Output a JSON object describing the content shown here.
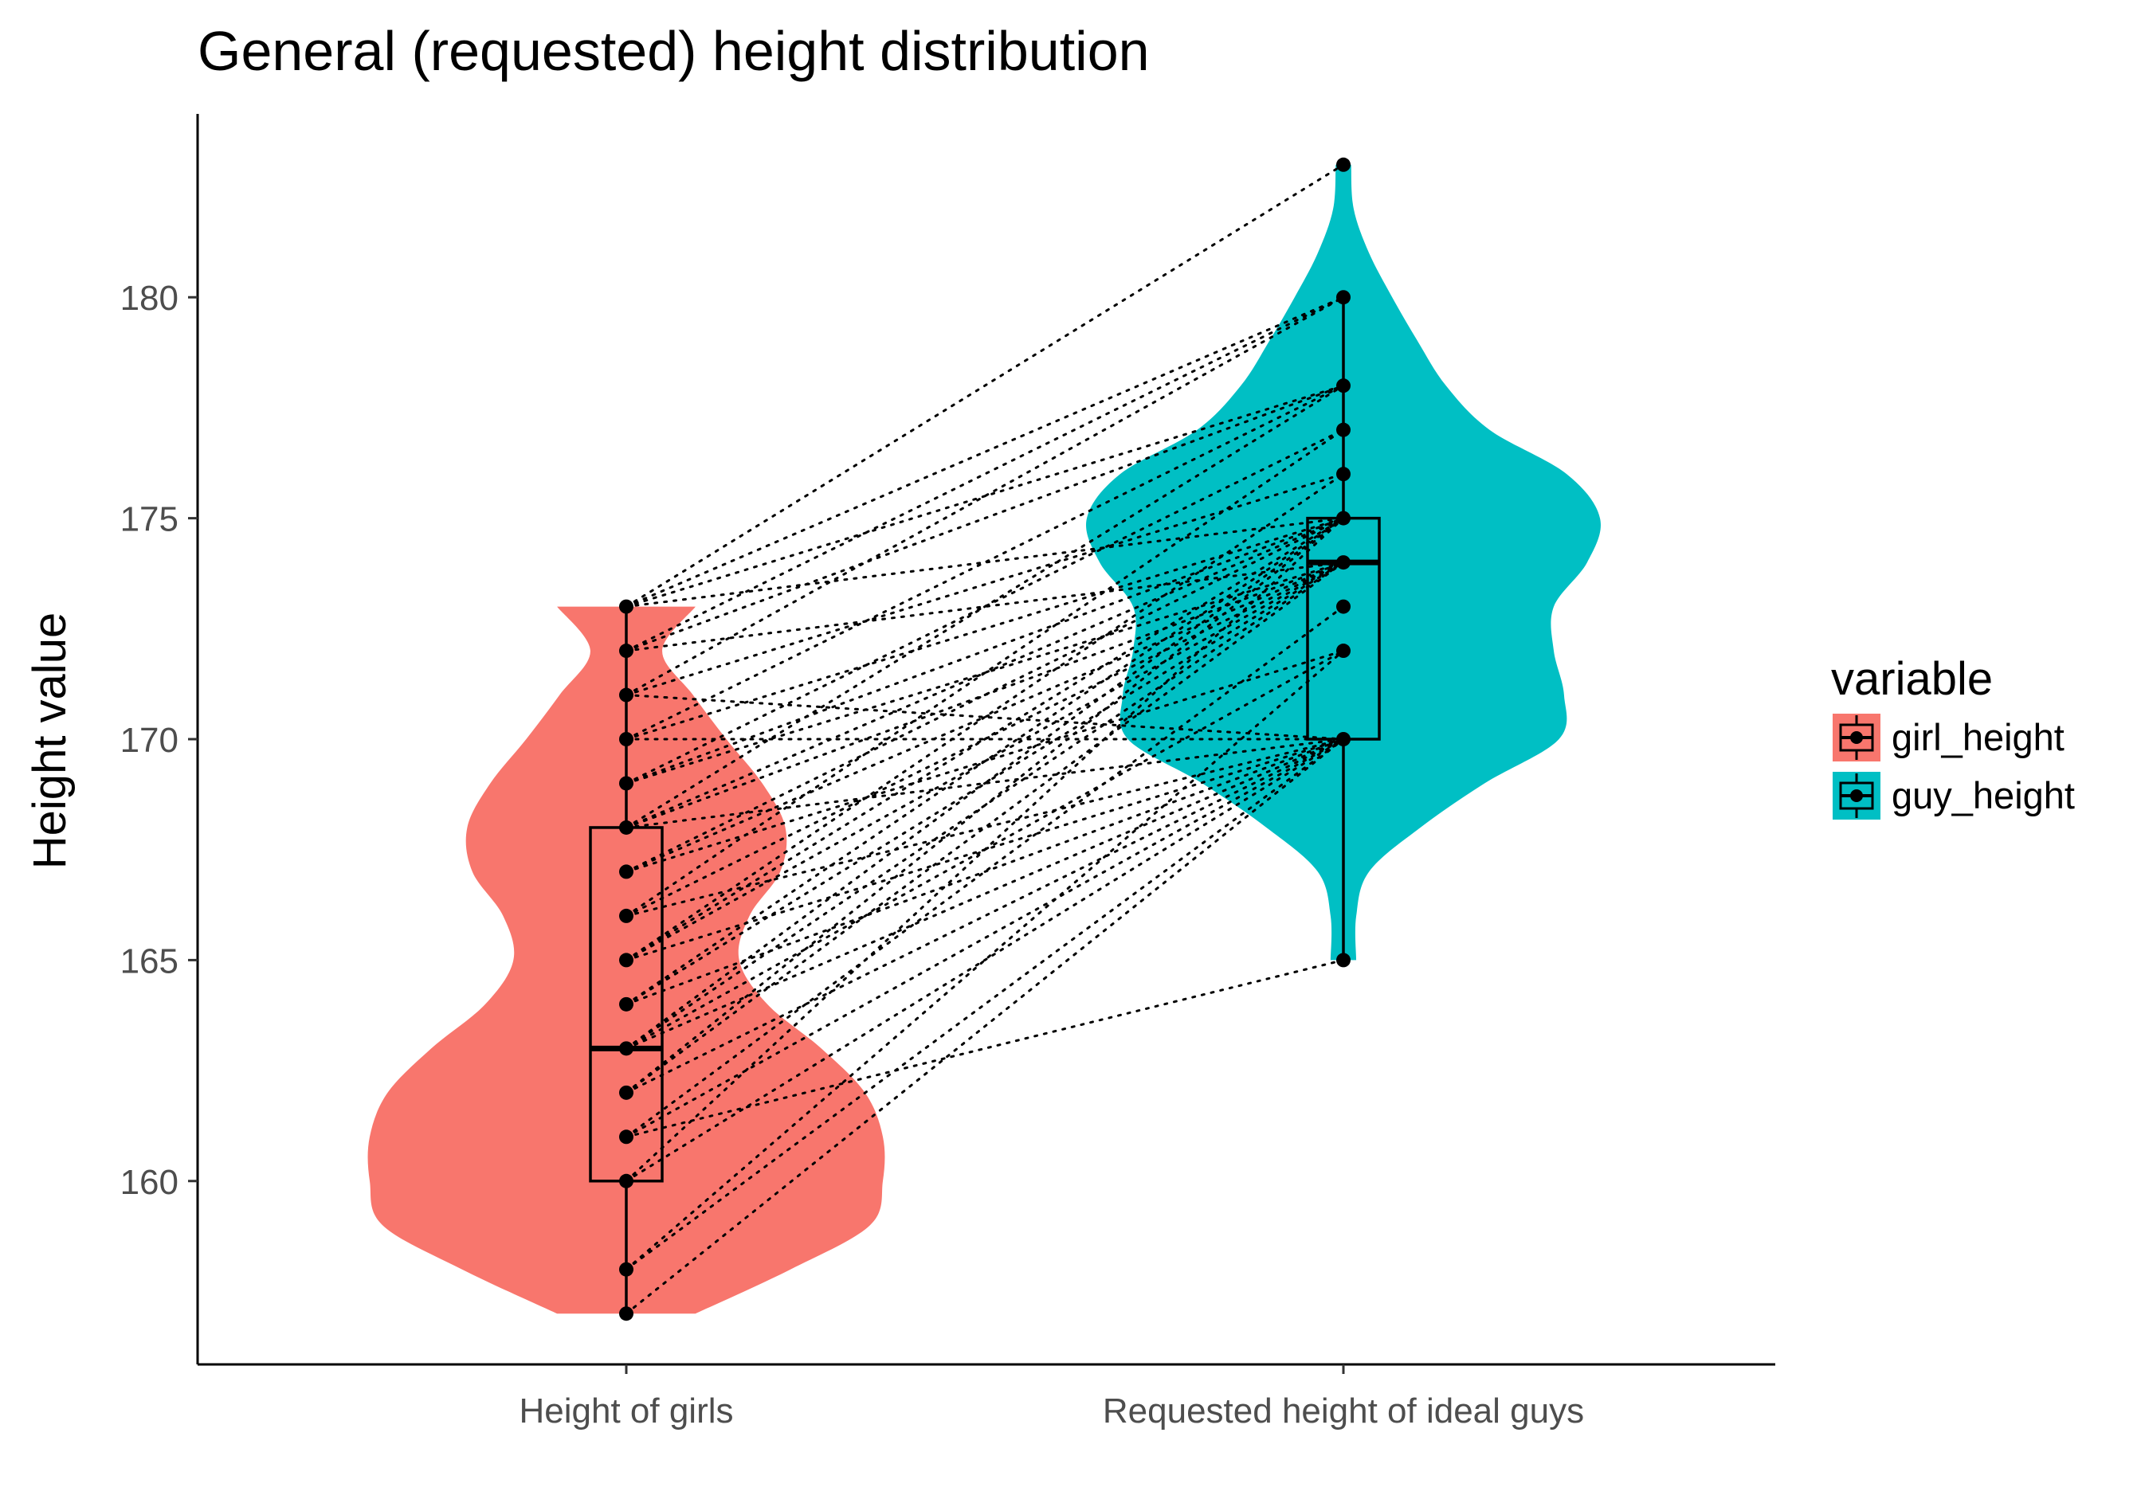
{
  "chart_data": {
    "type": "violin",
    "title": "General (requested) height distribution",
    "xlabel": "",
    "ylabel": "Height value",
    "categories": [
      "Height of girls",
      "Requested height of ideal guys"
    ],
    "yticks": [
      160,
      165,
      170,
      175,
      180
    ],
    "ylim": [
      155.85,
      184.15
    ],
    "grid": false,
    "legend": {
      "title": "variable",
      "position": "right",
      "entries": [
        "girl_height",
        "guy_height"
      ]
    },
    "series": [
      {
        "name": "girl_height",
        "category": "Height of girls",
        "color": "#F8766D",
        "box": {
          "min": 157,
          "q1": 160,
          "median": 163,
          "q3": 168,
          "max": 173
        },
        "violin_y": [
          157,
          158,
          159,
          160,
          161,
          162,
          163,
          164,
          165,
          166,
          167,
          168,
          169,
          170,
          171,
          172,
          173
        ],
        "violin_density": [
          0.27,
          0.64,
          0.95,
          1.0,
          1.0,
          0.93,
          0.76,
          0.55,
          0.44,
          0.48,
          0.6,
          0.62,
          0.53,
          0.39,
          0.26,
          0.14,
          0.27
        ],
        "points": [
          157,
          158,
          160,
          161,
          162,
          163,
          164,
          165,
          166,
          167,
          168,
          169,
          170,
          171,
          172,
          173
        ]
      },
      {
        "name": "guy_height",
        "category": "Requested height of ideal guys",
        "color": "#00BFC4",
        "box": {
          "min": 165,
          "q1": 170,
          "median": 174,
          "q3": 175,
          "max": 180
        },
        "violin_y": [
          165,
          166,
          167,
          168,
          169,
          170,
          171,
          172,
          173,
          174,
          175,
          176,
          177,
          178,
          179,
          180,
          181,
          182,
          183
        ],
        "violin_density": [
          0.05,
          0.05,
          0.1,
          0.3,
          0.55,
          0.84,
          0.86,
          0.82,
          0.82,
          0.95,
          1.0,
          0.87,
          0.57,
          0.4,
          0.29,
          0.19,
          0.1,
          0.04,
          0.03
        ],
        "points": [
          165,
          170,
          172,
          173,
          174,
          175,
          176,
          177,
          178,
          180,
          183
        ]
      }
    ],
    "pairs": [
      [
        157,
        170
      ],
      [
        158,
        170
      ],
      [
        158,
        172
      ],
      [
        160,
        170
      ],
      [
        160,
        175
      ],
      [
        161,
        165
      ],
      [
        161,
        170
      ],
      [
        161,
        173
      ],
      [
        162,
        170
      ],
      [
        162,
        174
      ],
      [
        162,
        175
      ],
      [
        163,
        170
      ],
      [
        163,
        172
      ],
      [
        163,
        174
      ],
      [
        163,
        175
      ],
      [
        164,
        170
      ],
      [
        164,
        174
      ],
      [
        164,
        175
      ],
      [
        165,
        170
      ],
      [
        165,
        174
      ],
      [
        165,
        175
      ],
      [
        165,
        176
      ],
      [
        166,
        170
      ],
      [
        166,
        174
      ],
      [
        166,
        177
      ],
      [
        167,
        172
      ],
      [
        167,
        174
      ],
      [
        167,
        175
      ],
      [
        168,
        170
      ],
      [
        168,
        174
      ],
      [
        168,
        175
      ],
      [
        168,
        178
      ],
      [
        169,
        174
      ],
      [
        169,
        175
      ],
      [
        169,
        177
      ],
      [
        170,
        170
      ],
      [
        170,
        175
      ],
      [
        170,
        178
      ],
      [
        171,
        170
      ],
      [
        171,
        176
      ],
      [
        171,
        180
      ],
      [
        172,
        174
      ],
      [
        172,
        178
      ],
      [
        172,
        180
      ],
      [
        173,
        178
      ],
      [
        173,
        183
      ],
      [
        173,
        180
      ],
      [
        173,
        175
      ]
    ]
  }
}
